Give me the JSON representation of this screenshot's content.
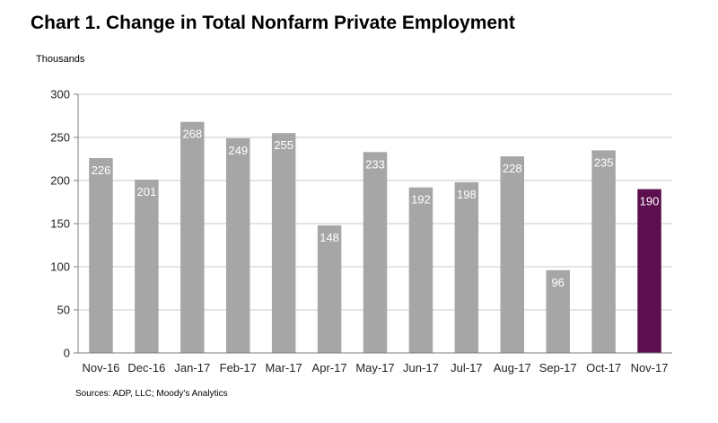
{
  "chart_data": {
    "type": "bar",
    "title": "Chart 1. Change in Total Nonfarm Private Employment",
    "units_label": "Thousands",
    "source": "Sources: ADP, LLC; Moody's Analytics",
    "categories": [
      "Nov-16",
      "Dec-16",
      "Jan-17",
      "Feb-17",
      "Mar-17",
      "Apr-17",
      "May-17",
      "Jun-17",
      "Jul-17",
      "Aug-17",
      "Sep-17",
      "Oct-17",
      "Nov-17"
    ],
    "values": [
      226,
      201,
      268,
      249,
      255,
      148,
      233,
      192,
      198,
      228,
      96,
      235,
      190
    ],
    "ylim": [
      0,
      300
    ],
    "yticks": [
      0,
      50,
      100,
      150,
      200,
      250,
      300
    ],
    "grid": true,
    "colors": {
      "default_bar": "#a6a6a6",
      "highlight_bar": "#5c0f4e",
      "grid": "#c8c8c8",
      "axis": "#7f7f7f"
    },
    "highlight_index": 12
  }
}
